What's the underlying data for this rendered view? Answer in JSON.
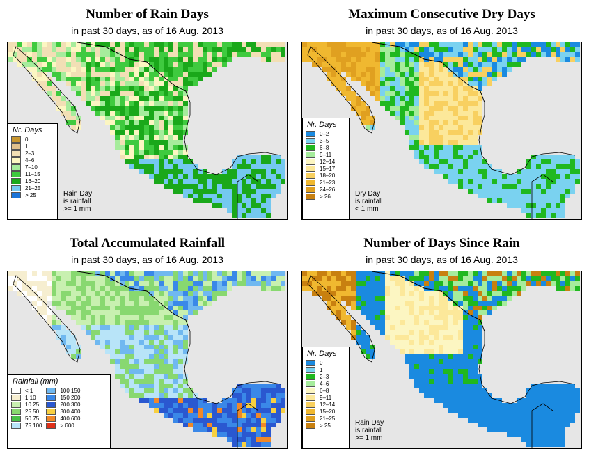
{
  "panels": [
    {
      "id": "rain-days",
      "title": "Number of Rain Days",
      "subtitle": "in past 30 days, as of  16 Aug. 2013",
      "legend_title": "Nr. Days",
      "legend": [
        {
          "label": "0",
          "color": "#c8962e"
        },
        {
          "label": "1",
          "color": "#e0c08c"
        },
        {
          "label": "2–3",
          "color": "#f2dfb5"
        },
        {
          "label": "4–6",
          "color": "#fcf6c2"
        },
        {
          "label": "7–10",
          "color": "#a6ec9c"
        },
        {
          "label": "11–15",
          "color": "#3fca3f"
        },
        {
          "label": "16–20",
          "color": "#1aa81a"
        },
        {
          "label": "21–25",
          "color": "#74c8f0"
        },
        {
          "label": "> 25",
          "color": "#1a74d8"
        }
      ],
      "note": [
        "Rain Day",
        "is rainfall",
        ">= 1 mm"
      ]
    },
    {
      "id": "dry-days",
      "title": "Maximum Consecutive Dry Days",
      "subtitle": "in past 30 days, as of  16 Aug. 2013",
      "legend_title": "Nr. Days",
      "legend": [
        {
          "label": "0–2",
          "color": "#1a8ae0"
        },
        {
          "label": "3–5",
          "color": "#7ad2f0"
        },
        {
          "label": "6–8",
          "color": "#20b820"
        },
        {
          "label": "9–11",
          "color": "#a6ec9c"
        },
        {
          "label": "12–14",
          "color": "#fcf6c2"
        },
        {
          "label": "15–17",
          "color": "#fce89a"
        },
        {
          "label": "18–20",
          "color": "#f8d060"
        },
        {
          "label": "21–23",
          "color": "#f0b830"
        },
        {
          "label": "24–26",
          "color": "#e0a020"
        },
        {
          "label": "> 26",
          "color": "#c88010"
        }
      ],
      "note": [
        "Dry Day",
        "is rainfall",
        "< 1 mm"
      ]
    },
    {
      "id": "total-rain",
      "title": "Total Accumulated Rainfall",
      "subtitle": "in past 30 days, as of  16 Aug. 2013",
      "legend_title": "Rainfall (mm)",
      "legend_cols": [
        [
          {
            "label": "< 1",
            "color": "#ffffff"
          },
          {
            "label": "1   10",
            "color": "#f6eed0"
          },
          {
            "label": "10   25",
            "color": "#c8f0b0"
          },
          {
            "label": "25   50",
            "color": "#88d870"
          },
          {
            "label": "50   75",
            "color": "#48c048"
          },
          {
            "label": "75  100",
            "color": "#b8e4f8"
          }
        ],
        [
          {
            "label": "100  150",
            "color": "#70b8f0"
          },
          {
            "label": "150  200",
            "color": "#3a88e8"
          },
          {
            "label": "200  300",
            "color": "#2a58d0"
          },
          {
            "label": "300  400",
            "color": "#f8d040"
          },
          {
            "label": "400  600",
            "color": "#f08828"
          },
          {
            "label": "> 600",
            "color": "#e03018"
          }
        ]
      ]
    },
    {
      "id": "days-since",
      "title": "Number of Days Since Rain",
      "subtitle": "in past 30 days, as of  16 Aug. 2013",
      "legend_title": "Nr. Days",
      "legend": [
        {
          "label": "0",
          "color": "#1a8ae0"
        },
        {
          "label": "1",
          "color": "#7ad2f0"
        },
        {
          "label": "2–3",
          "color": "#20b820"
        },
        {
          "label": "4–6",
          "color": "#a6ec9c"
        },
        {
          "label": "6–8",
          "color": "#fcf6c2"
        },
        {
          "label": "9–11",
          "color": "#fce89a"
        },
        {
          "label": "12–14",
          "color": "#f8d060"
        },
        {
          "label": "15–20",
          "color": "#f0b830"
        },
        {
          "label": "21–25",
          "color": "#e0a020"
        },
        {
          "label": "> 25",
          "color": "#c88010"
        }
      ],
      "note": [
        "Rain Day",
        "is rainfall",
        ">= 1 mm"
      ]
    }
  ]
}
